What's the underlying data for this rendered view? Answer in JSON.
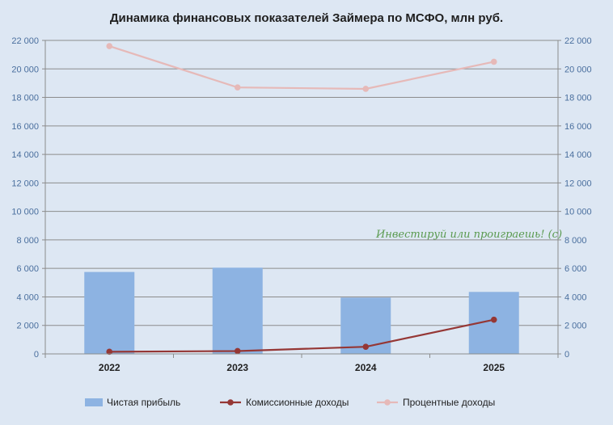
{
  "chart_data": {
    "type": "bar+line",
    "title": "Динамика финансовых показателей Займера по МСФО, млн руб.",
    "categories": [
      "2022",
      "2023",
      "2024",
      "2025"
    ],
    "ylim": [
      0,
      22000
    ],
    "y_ticks": [
      "0",
      "2 000",
      "4 000",
      "6 000",
      "8 000",
      "10 000",
      "12 000",
      "14 000",
      "16 000",
      "18 000",
      "20 000",
      "22 000"
    ],
    "y_tick_values": [
      0,
      2000,
      4000,
      6000,
      8000,
      10000,
      12000,
      14000,
      16000,
      18000,
      20000,
      22000
    ],
    "secondary_axis": true,
    "grid": true,
    "legend_position": "bottom",
    "series": [
      {
        "name": "Чистая прибыль",
        "type": "bar",
        "color": "#8db3e2",
        "values": [
          5750,
          6050,
          3950,
          4350
        ]
      },
      {
        "name": "Комиссионные доходы",
        "type": "line",
        "color": "#953735",
        "values": [
          150,
          200,
          500,
          2400
        ]
      },
      {
        "name": "Процентные доходы",
        "type": "line",
        "color": "#e6b9b8",
        "values": [
          21600,
          18700,
          18600,
          20500
        ]
      }
    ],
    "annotation": "Инвестируй или проиграешь! (с)"
  }
}
